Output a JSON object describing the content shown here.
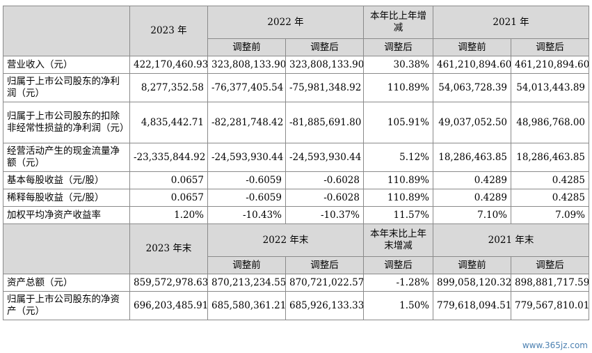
{
  "header1": {
    "year_a": "2023 年",
    "year_b": "2022 年",
    "change": "本年比上年增减",
    "year_c": "2021 年",
    "before": "调整前",
    "after": "调整后",
    "change_after": "调整后"
  },
  "rows1": [
    {
      "label": "营业收入（元）",
      "v": [
        "422,170,460.93",
        "323,808,133.90",
        "323,808,133.90",
        "30.38%",
        "461,210,894.60",
        "461,210,894.60"
      ]
    },
    {
      "label": "归属于上市公司股东的净利润（元）",
      "v": [
        "8,277,352.58",
        "-76,377,405.54",
        "-75,981,348.92",
        "110.89%",
        "54,063,728.39",
        "54,013,443.89"
      ]
    },
    {
      "label": "归属于上市公司股东的扣除非经常性损益的净利润（元）",
      "v": [
        "4,835,442.71",
        "-82,281,748.42",
        "-81,885,691.80",
        "105.91%",
        "49,037,052.50",
        "48,986,768.00"
      ]
    },
    {
      "label": "经营活动产生的现金流量净额（元）",
      "v": [
        "-23,335,844.92",
        "-24,593,930.44",
        "-24,593,930.44",
        "5.12%",
        "18,286,463.85",
        "18,286,463.85"
      ]
    },
    {
      "label": "基本每股收益（元/股）",
      "v": [
        "0.0657",
        "-0.6059",
        "-0.6028",
        "110.89%",
        "0.4289",
        "0.4285"
      ]
    },
    {
      "label": "稀释每股收益（元/股）",
      "v": [
        "0.0657",
        "-0.6059",
        "-0.6028",
        "110.89%",
        "0.4289",
        "0.4285"
      ]
    },
    {
      "label": "加权平均净资产收益率",
      "v": [
        "1.20%",
        "-10.43%",
        "-10.37%",
        "11.57%",
        "7.10%",
        "7.09%"
      ]
    }
  ],
  "header2": {
    "year_a": "2023 年末",
    "year_b": "2022 年末",
    "change": "本年末比上年末增减",
    "year_c": "2021 年末",
    "before": "调整前",
    "after": "调整后",
    "change_after": "调整后"
  },
  "rows2": [
    {
      "label": "资产总额（元）",
      "v": [
        "859,572,978.63",
        "870,213,234.55",
        "870,721,022.57",
        "-1.28%",
        "899,058,120.32",
        "898,881,717.59"
      ]
    },
    {
      "label": "归属于上市公司股东的净资产（元）",
      "v": [
        "696,203,485.91",
        "685,580,361.21",
        "685,926,133.33",
        "1.50%",
        "779,618,094.51",
        "779,567,810.01"
      ]
    }
  ],
  "watermark": "www.365jz.com"
}
